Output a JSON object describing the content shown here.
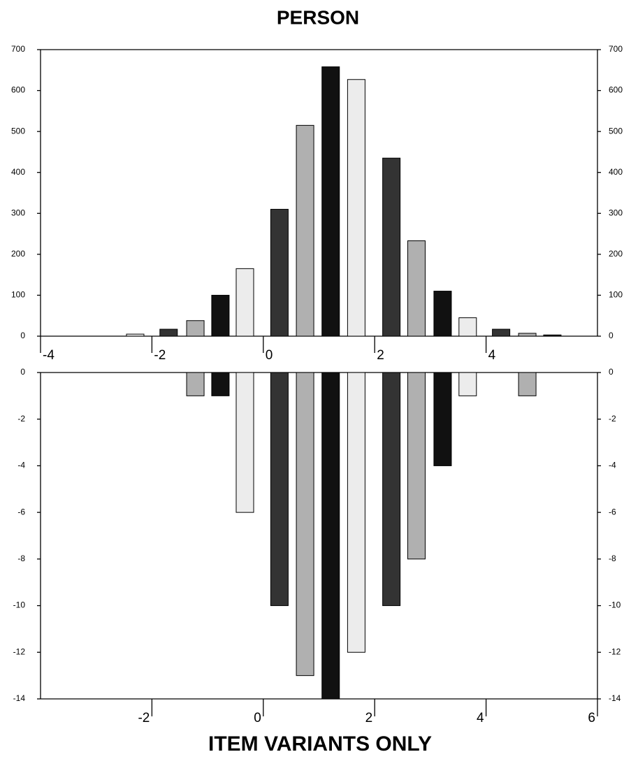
{
  "chart_data": [
    {
      "type": "bar",
      "title": "PERSON",
      "x": [
        -2.3,
        -1.7,
        -1.22,
        -0.77,
        -0.33,
        0.29,
        0.75,
        1.21,
        1.67,
        2.3,
        2.75,
        3.22,
        3.67,
        4.27,
        4.74,
        5.19
      ],
      "values": [
        5,
        17,
        38,
        100,
        165,
        310,
        515,
        658,
        627,
        435,
        233,
        110,
        45,
        17,
        7,
        3
      ],
      "colors": [
        "#ececec",
        "#333333",
        "#b0b0b0",
        "#111111",
        "#ececec",
        "#333333",
        "#b0b0b0",
        "#111111",
        "#ececec",
        "#333333",
        "#b0b0b0",
        "#111111",
        "#ececec",
        "#333333",
        "#b0b0b0",
        "#111111"
      ],
      "xlim": [
        -4,
        6
      ],
      "xticks": [
        -4,
        -2,
        0,
        2,
        4
      ],
      "ylim": [
        0,
        700
      ],
      "yticks": [
        0,
        100,
        200,
        300,
        400,
        500,
        600,
        700
      ]
    },
    {
      "type": "bar",
      "x_label": "ITEM VARIANTS ONLY",
      "x": [
        -1.22,
        -0.77,
        -0.33,
        0.29,
        0.75,
        1.21,
        1.67,
        2.3,
        2.75,
        3.22,
        3.67,
        4.74
      ],
      "values": [
        -1,
        -1,
        -6,
        -10,
        -13,
        -14,
        -12,
        -10,
        -8,
        -4,
        -1,
        -1
      ],
      "colors": [
        "#b0b0b0",
        "#111111",
        "#ececec",
        "#333333",
        "#b0b0b0",
        "#111111",
        "#ececec",
        "#333333",
        "#b0b0b0",
        "#111111",
        "#ececec",
        "#b0b0b0"
      ],
      "xlim": [
        -4,
        6
      ],
      "xticks": [
        -2,
        0,
        2,
        4,
        6
      ],
      "ylim": [
        -14,
        0
      ],
      "yticks": [
        0,
        -2,
        -4,
        -6,
        -8,
        -10,
        -12,
        -14
      ]
    }
  ]
}
